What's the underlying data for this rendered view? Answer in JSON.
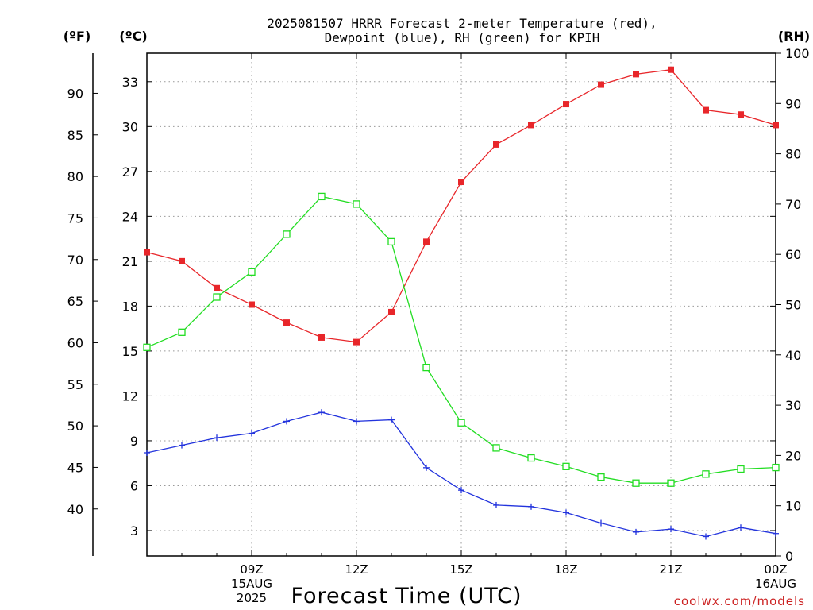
{
  "title_line1": "2025081507 HRRR Forecast 2-meter Temperature (red),",
  "title_line2": "Dewpoint (blue), RH (green) for KPIH",
  "unit_f": "(ºF)",
  "unit_c": "(ºC)",
  "unit_rh": "(RH)",
  "xlabel": "Forecast Time (UTC)",
  "credit": "coolwx.com/models",
  "colors": {
    "temperature": "#e8262a",
    "dewpoint": "#2233dd",
    "rh": "#22dd22",
    "grid": "#999999",
    "credit": "#cc2222"
  },
  "chart_data": {
    "type": "line",
    "hours": [
      6,
      7,
      8,
      9,
      10,
      11,
      12,
      13,
      14,
      15,
      16,
      17,
      18,
      19,
      20,
      21,
      22,
      23,
      24
    ],
    "x_range": [
      6,
      24
    ],
    "x_ticks": [
      {
        "h": 9,
        "lines": [
          "09Z",
          "15AUG",
          "2025"
        ]
      },
      {
        "h": 12,
        "lines": [
          "12Z"
        ]
      },
      {
        "h": 15,
        "lines": [
          "15Z"
        ]
      },
      {
        "h": 18,
        "lines": [
          "18Z"
        ]
      },
      {
        "h": 21,
        "lines": [
          "21Z"
        ]
      },
      {
        "h": 24,
        "lines": [
          "00Z",
          "16AUG"
        ]
      }
    ],
    "y_c_range": [
      1.3,
      34.9
    ],
    "y_c_ticks": [
      "3",
      "6",
      "9",
      "12",
      "15",
      "18",
      "21",
      "24",
      "27",
      "30",
      "33"
    ],
    "y_f_ticks": [
      "40",
      "45",
      "50",
      "55",
      "60",
      "65",
      "70",
      "75",
      "80",
      "85",
      "90"
    ],
    "y_rh_range": [
      0,
      100
    ],
    "y_rh_ticks": [
      "0",
      "10",
      "20",
      "30",
      "40",
      "50",
      "60",
      "70",
      "80",
      "90",
      "100"
    ],
    "grid": true,
    "series": [
      {
        "key": "temperature",
        "axis": "c",
        "marker": "filled-square",
        "values": [
          21.6,
          21.0,
          19.2,
          18.1,
          16.9,
          15.9,
          15.6,
          17.6,
          22.3,
          26.3,
          28.8,
          30.1,
          31.5,
          32.8,
          33.5,
          33.8,
          31.1,
          30.8,
          30.1
        ]
      },
      {
        "key": "dewpoint",
        "axis": "c",
        "marker": "plus",
        "values": [
          8.2,
          8.7,
          9.2,
          9.5,
          10.3,
          10.9,
          10.3,
          10.4,
          7.2,
          5.7,
          4.7,
          4.6,
          4.2,
          3.5,
          2.9,
          3.1,
          2.6,
          3.2,
          2.8
        ]
      },
      {
        "key": "rh",
        "axis": "rh",
        "marker": "open-square",
        "values": [
          41.5,
          44.5,
          51.5,
          56.5,
          64.0,
          71.5,
          70.0,
          62.5,
          37.5,
          26.5,
          21.5,
          19.5,
          17.8,
          15.7,
          14.5,
          14.5,
          16.3,
          17.3,
          17.6
        ]
      }
    ]
  }
}
